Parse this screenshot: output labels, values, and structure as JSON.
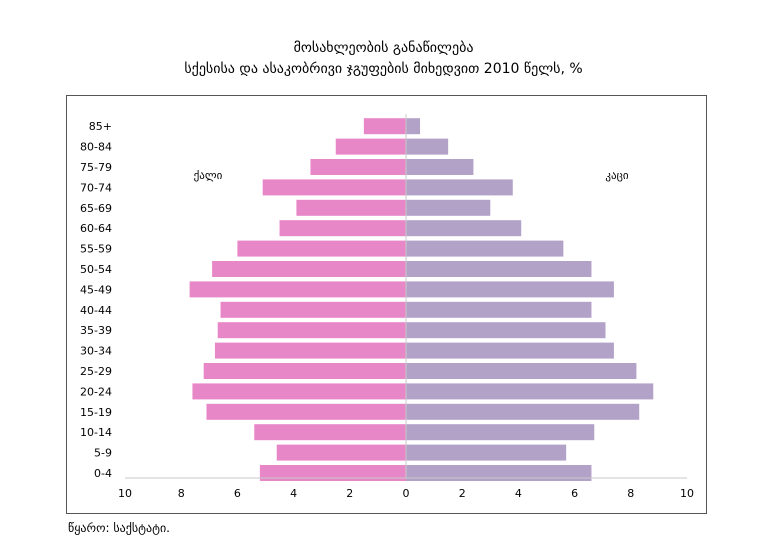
{
  "title_line1": "მოსახლეობის განაწილება",
  "title_line2": "სქესისა და ასაკობრივი ჯგუფების მიხედვით 2010 წელს, %",
  "source": "წყარო: საქსტატი.",
  "chart_data": {
    "type": "bar",
    "orientation": "horizontal-population-pyramid",
    "categories": [
      "85+",
      "80-84",
      "75-79",
      "70-74",
      "65-69",
      "60-64",
      "55-59",
      "50-54",
      "45-49",
      "40-44",
      "35-39",
      "30-34",
      "25-29",
      "20-24",
      "15-19",
      "10-14",
      "5-9",
      "0-4"
    ],
    "series": [
      {
        "name": "ქალი",
        "side": "left",
        "color": "#e887c8",
        "values": [
          1.5,
          2.5,
          3.4,
          5.1,
          3.9,
          4.5,
          6.0,
          6.9,
          7.7,
          6.6,
          6.7,
          6.8,
          7.2,
          7.6,
          7.1,
          5.4,
          4.6,
          5.2
        ]
      },
      {
        "name": "კაცი",
        "side": "right",
        "color": "#b3a2c8",
        "values": [
          0.5,
          1.5,
          2.4,
          3.8,
          3.0,
          4.1,
          5.6,
          6.6,
          7.4,
          6.6,
          7.1,
          7.4,
          8.2,
          8.8,
          8.3,
          6.7,
          5.7,
          6.6
        ]
      }
    ],
    "x_ticks": [
      "10",
      "8",
      "6",
      "4",
      "2",
      "0",
      "2",
      "4",
      "6",
      "8",
      "10"
    ],
    "xlim": [
      -10,
      10
    ],
    "legend": [
      "ქალი",
      "კაცი"
    ]
  }
}
